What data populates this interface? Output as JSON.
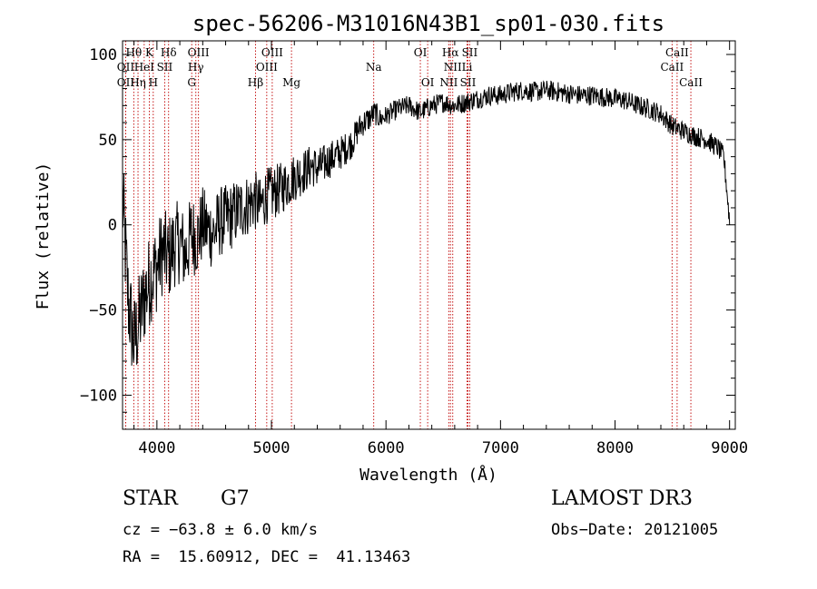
{
  "chart_data": {
    "type": "line",
    "title": "spec-56206-M31016N43B1_sp01-030.fits",
    "xlabel": "Wavelength (Å)",
    "ylabel": "Flux (relative)",
    "xlim": [
      3700,
      9050
    ],
    "ylim": [
      -120,
      108
    ],
    "x_ticks": [
      4000,
      5000,
      6000,
      7000,
      8000,
      9000
    ],
    "y_ticks": [
      -100,
      -50,
      0,
      50,
      100
    ],
    "x_tick_labels": [
      "4000",
      "5000",
      "6000",
      "7000",
      "8000",
      "9000"
    ],
    "y_tick_labels": [
      "−100",
      "−50",
      "0",
      "50",
      "100"
    ],
    "series": [
      {
        "name": "flux",
        "color": "#000000",
        "x": [
          3700,
          3750,
          3800,
          3850,
          3900,
          3950,
          4000,
          4050,
          4100,
          4150,
          4200,
          4250,
          4300,
          4350,
          4400,
          4450,
          4500,
          4550,
          4600,
          4650,
          4700,
          4750,
          4800,
          4850,
          4900,
          4950,
          5000,
          5050,
          5100,
          5150,
          5200,
          5250,
          5300,
          5350,
          5400,
          5450,
          5500,
          5550,
          5600,
          5650,
          5700,
          5750,
          5800,
          5850,
          5900,
          5950,
          6000,
          6100,
          6200,
          6300,
          6400,
          6500,
          6600,
          6700,
          6800,
          6900,
          7000,
          7100,
          7200,
          7300,
          7400,
          7500,
          7600,
          7700,
          7800,
          7900,
          8000,
          8100,
          8200,
          8300,
          8400,
          8500,
          8600,
          8700,
          8800,
          8900,
          8950,
          9000
        ],
        "y": [
          15,
          -45,
          -70,
          -55,
          -40,
          -30,
          -25,
          -15,
          -20,
          -12,
          -10,
          -18,
          -5,
          -8,
          0,
          -3,
          -5,
          2,
          3,
          5,
          8,
          10,
          12,
          15,
          10,
          17,
          18,
          20,
          22,
          25,
          28,
          30,
          32,
          35,
          33,
          35,
          38,
          40,
          42,
          45,
          48,
          55,
          60,
          62,
          66,
          62,
          64,
          68,
          70,
          66,
          70,
          72,
          70,
          72,
          74,
          76,
          76,
          78,
          79,
          78,
          79,
          78,
          77,
          76,
          76,
          75,
          74,
          73,
          70,
          68,
          65,
          58,
          55,
          52,
          50,
          45,
          40,
          2
        ],
        "noise_amplitude_short_wavelength": 30,
        "noise_amplitude_long_wavelength": 6
      }
    ],
    "line_markers": [
      {
        "label": "Hθ",
        "x": 3798,
        "row": 1
      },
      {
        "label": "K",
        "x": 3934,
        "row": 1
      },
      {
        "label": "Hδ",
        "x": 4102,
        "row": 1
      },
      {
        "label": "OIII",
        "x": 4363,
        "row": 1
      },
      {
        "label": "OIII",
        "x": 5007,
        "row": 1
      },
      {
        "label": "OI",
        "x": 6300,
        "row": 1
      },
      {
        "label": "Hα",
        "x": 6563,
        "row": 1
      },
      {
        "label": "SII",
        "x": 6731,
        "row": 1
      },
      {
        "label": "CaII",
        "x": 8542,
        "row": 1
      },
      {
        "label": "OII",
        "x": 3727,
        "row": 2
      },
      {
        "label": "HeI",
        "x": 3889,
        "row": 2
      },
      {
        "label": "SII",
        "x": 4068,
        "row": 2
      },
      {
        "label": "Hγ",
        "x": 4340,
        "row": 2
      },
      {
        "label": "OIII",
        "x": 4959,
        "row": 2
      },
      {
        "label": "Na",
        "x": 5893,
        "row": 2
      },
      {
        "label": "NII",
        "x": 6583,
        "row": 2
      },
      {
        "label": "Li",
        "x": 6708,
        "row": 2
      },
      {
        "label": "CaII",
        "x": 8498,
        "row": 2
      },
      {
        "label": "OII",
        "x": 3727,
        "row": 3
      },
      {
        "label": "Hη",
        "x": 3835,
        "row": 3
      },
      {
        "label": "H",
        "x": 3968,
        "row": 3
      },
      {
        "label": "G",
        "x": 4304,
        "row": 3
      },
      {
        "label": "Hβ",
        "x": 4861,
        "row": 3
      },
      {
        "label": "Mg",
        "x": 5175,
        "row": 3
      },
      {
        "label": "OI",
        "x": 6364,
        "row": 3
      },
      {
        "label": "NII",
        "x": 6548,
        "row": 3
      },
      {
        "label": "SII",
        "x": 6716,
        "row": 3
      },
      {
        "label": "CaII",
        "x": 8662,
        "row": 3
      }
    ]
  },
  "info": {
    "class_label": "STAR",
    "subclass_label": "G7",
    "survey_label": "LAMOST DR3",
    "redshift_text": "cz = −63.8 ± 6.0 km/s",
    "obs_date_text": "Obs−Date: 20121005",
    "coords_text": "RA =  15.60912, DEC =  41.13463"
  },
  "colors": {
    "spectrum": "#000000",
    "line_marker": "#c00000",
    "axis": "#000000",
    "background": "#ffffff"
  }
}
